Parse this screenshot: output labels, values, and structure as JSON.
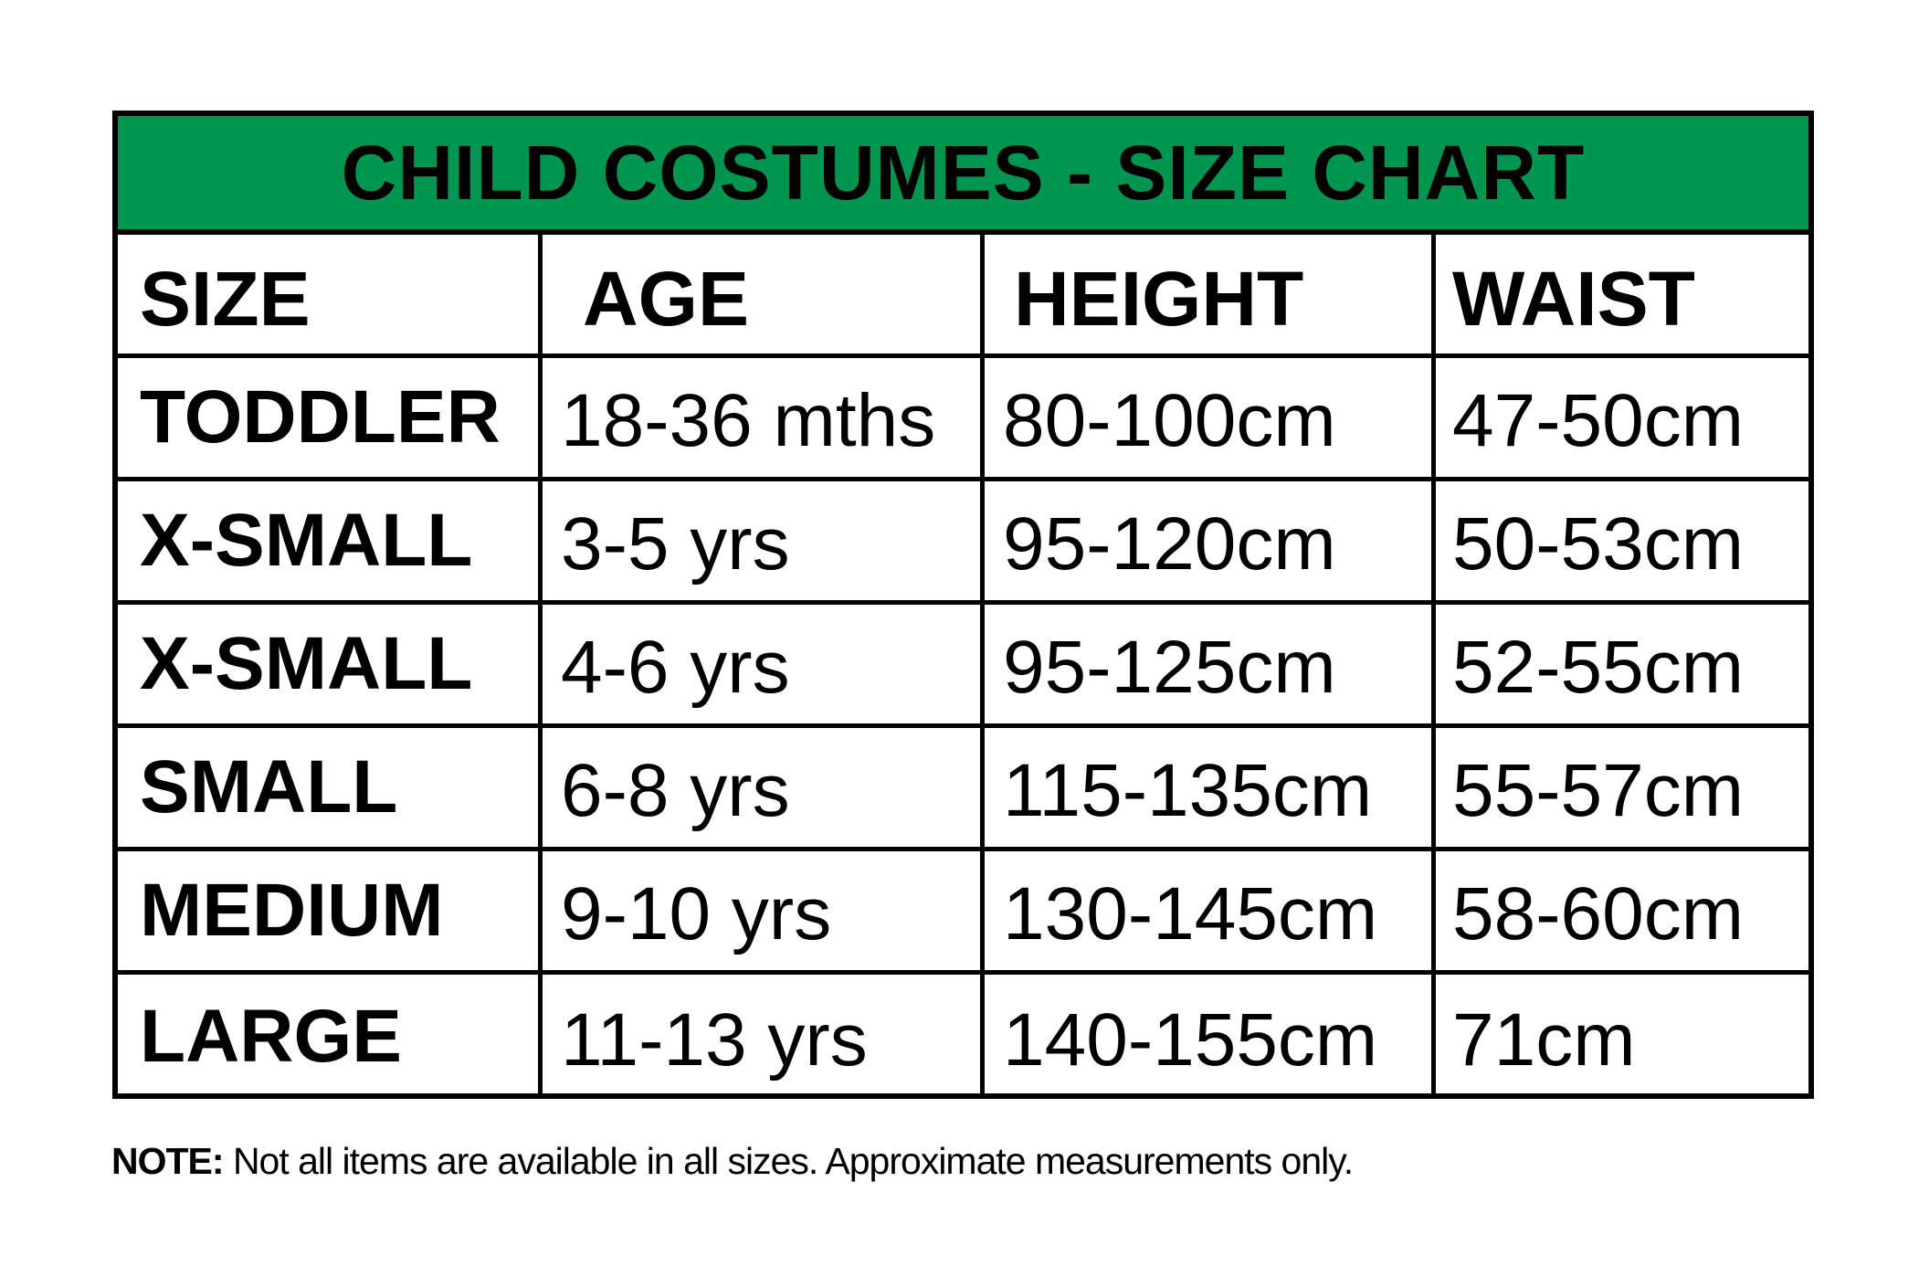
{
  "title": "CHILD COSTUMES - SIZE CHART",
  "header_color": "#009550",
  "columns": [
    "SIZE",
    "AGE",
    "HEIGHT",
    "WAIST"
  ],
  "rows": [
    {
      "size": "TODDLER",
      "age": "18-36 mths",
      "height": "80-100cm",
      "waist": "47-50cm"
    },
    {
      "size": "X-SMALL",
      "age": "3-5 yrs",
      "height": "95-120cm",
      "waist": "50-53cm"
    },
    {
      "size": "X-SMALL",
      "age": "4-6 yrs",
      "height": "95-125cm",
      "waist": "52-55cm"
    },
    {
      "size": "SMALL",
      "age": "6-8 yrs",
      "height": "115-135cm",
      "waist": "55-57cm"
    },
    {
      "size": "MEDIUM",
      "age": "9-10 yrs",
      "height": "130-145cm",
      "waist": "58-60cm"
    },
    {
      "size": "LARGE",
      "age": "11-13 yrs",
      "height": "140-155cm",
      "waist": "71cm"
    }
  ],
  "note": {
    "label": "NOTE:",
    "text": " Not all items are available in all sizes. Approximate measurements only."
  }
}
